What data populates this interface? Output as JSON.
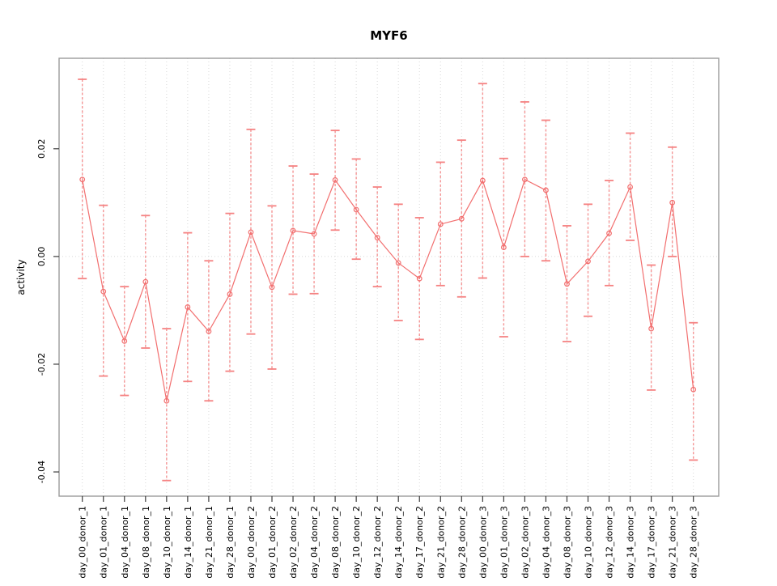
{
  "window": {
    "background": "#ffffff"
  },
  "chart_data": {
    "type": "line",
    "title": "MYF6",
    "ylabel": "activity",
    "xlabel": "",
    "legend": "none",
    "marker": "open-circle",
    "error_bars": true,
    "grid": {
      "vertical": "dotted",
      "horizontal_zero_line": "dotted"
    },
    "ylim": [
      -0.0445,
      0.0368
    ],
    "yticks": [
      0.02,
      0,
      -0.02,
      -0.04
    ],
    "ytick_labels": [
      "0.02",
      "0.00",
      "-0.02",
      "-0.04"
    ],
    "categories": [
      "day_00_donor_1",
      "day_01_donor_1",
      "day_04_donor_1",
      "day_08_donor_1",
      "day_10_donor_1",
      "day_14_donor_1",
      "day_21_donor_1",
      "day_28_donor_1",
      "day_00_donor_2",
      "day_01_donor_2",
      "day_02_donor_2",
      "day_04_donor_2",
      "day_08_donor_2",
      "day_10_donor_2",
      "day_12_donor_2",
      "day_14_donor_2",
      "day_17_donor_2",
      "day_21_donor_2",
      "day_28_donor_2",
      "day_00_donor_3",
      "day_01_donor_3",
      "day_02_donor_3",
      "day_04_donor_3",
      "day_08_donor_3",
      "day_10_donor_3",
      "day_12_donor_3",
      "day_14_donor_3",
      "day_17_donor_3",
      "day_21_donor_3",
      "day_28_donor_3"
    ],
    "series": [
      {
        "name": "MYF6 activity",
        "values": [
          0.0143,
          -0.0065,
          -0.0157,
          -0.0047,
          -0.0268,
          -0.0094,
          -0.0139,
          -0.007,
          0.0045,
          -0.0057,
          0.0048,
          0.0042,
          0.0142,
          0.0087,
          0.0035,
          -0.0012,
          -0.0041,
          0.006,
          0.007,
          0.0141,
          0.0017,
          0.0143,
          0.0123,
          -0.0051,
          -0.0009,
          0.0043,
          0.0129,
          -0.0134,
          0.01,
          -0.0247
        ],
        "upper": [
          0.0329,
          0.0095,
          -0.0056,
          0.0076,
          -0.0134,
          0.0044,
          -0.0008,
          0.008,
          0.0236,
          0.0094,
          0.0168,
          0.0153,
          0.0234,
          0.0181,
          0.0129,
          0.0097,
          0.0072,
          0.0175,
          0.0216,
          0.0321,
          0.0182,
          0.0287,
          0.0253,
          0.0057,
          0.0097,
          0.0141,
          0.0229,
          -0.0016,
          0.0203,
          -0.0123
        ],
        "lower": [
          -0.0041,
          -0.0222,
          -0.0258,
          -0.017,
          -0.0416,
          -0.0232,
          -0.0268,
          -0.0213,
          -0.0144,
          -0.0209,
          -0.007,
          -0.0069,
          0.0049,
          -0.0005,
          -0.0056,
          -0.0119,
          -0.0154,
          -0.0054,
          -0.0075,
          -0.004,
          -0.0149,
          0,
          -0.0008,
          -0.0158,
          -0.0111,
          -0.0054,
          0.003,
          -0.0248,
          0,
          -0.0378
        ]
      }
    ],
    "colors": {
      "series": "#f26f6f",
      "error_bar": "#f59595",
      "error_cap": "#f58282",
      "grid": "#d8d8d8",
      "box": "#9b9b9b",
      "tick": "#3c3c3c",
      "text": "#000000",
      "background": "#ffffff"
    }
  }
}
